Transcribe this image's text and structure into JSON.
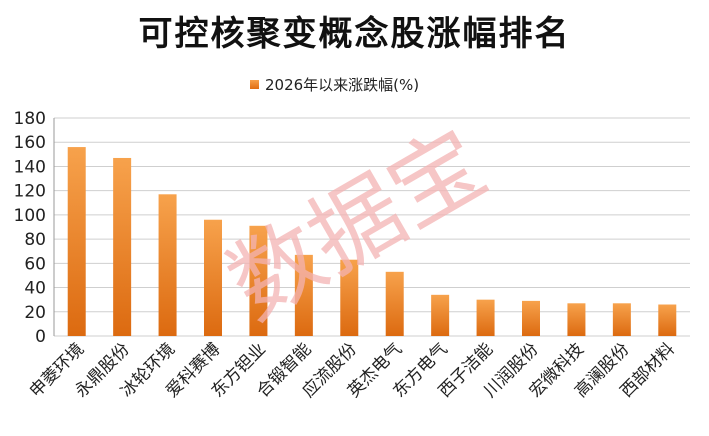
{
  "chart_data": {
    "type": "bar",
    "title": "可控核聚变概念股涨幅排名",
    "categories": [
      "申菱环境",
      "永鼎股份",
      "冰轮环境",
      "爱科赛博",
      "东方钽业",
      "合锻智能",
      "应流股份",
      "英杰电气",
      "东方电气",
      "西子洁能",
      "川润股份",
      "宏微科技",
      "高澜股份",
      "西部材料"
    ],
    "series": [
      {
        "name": "2026年以来涨跌幅(%)",
        "values": [
          156,
          147,
          117,
          96,
          91,
          67,
          63,
          53,
          34,
          30,
          29,
          27,
          27,
          26
        ]
      }
    ],
    "ylim": [
      0,
      180
    ],
    "yticks": [
      "0",
      "20",
      "40",
      "60",
      "80",
      "100",
      "120",
      "140",
      "160",
      "180"
    ],
    "grid": true,
    "legend": "top-center",
    "colors": {
      "bar_top": "#f7a24c",
      "bar_bottom": "#dc6a10",
      "grid": "#cfcfcf",
      "watermark": "#f3b3b3"
    }
  },
  "watermark": {
    "text": "数据宝"
  }
}
